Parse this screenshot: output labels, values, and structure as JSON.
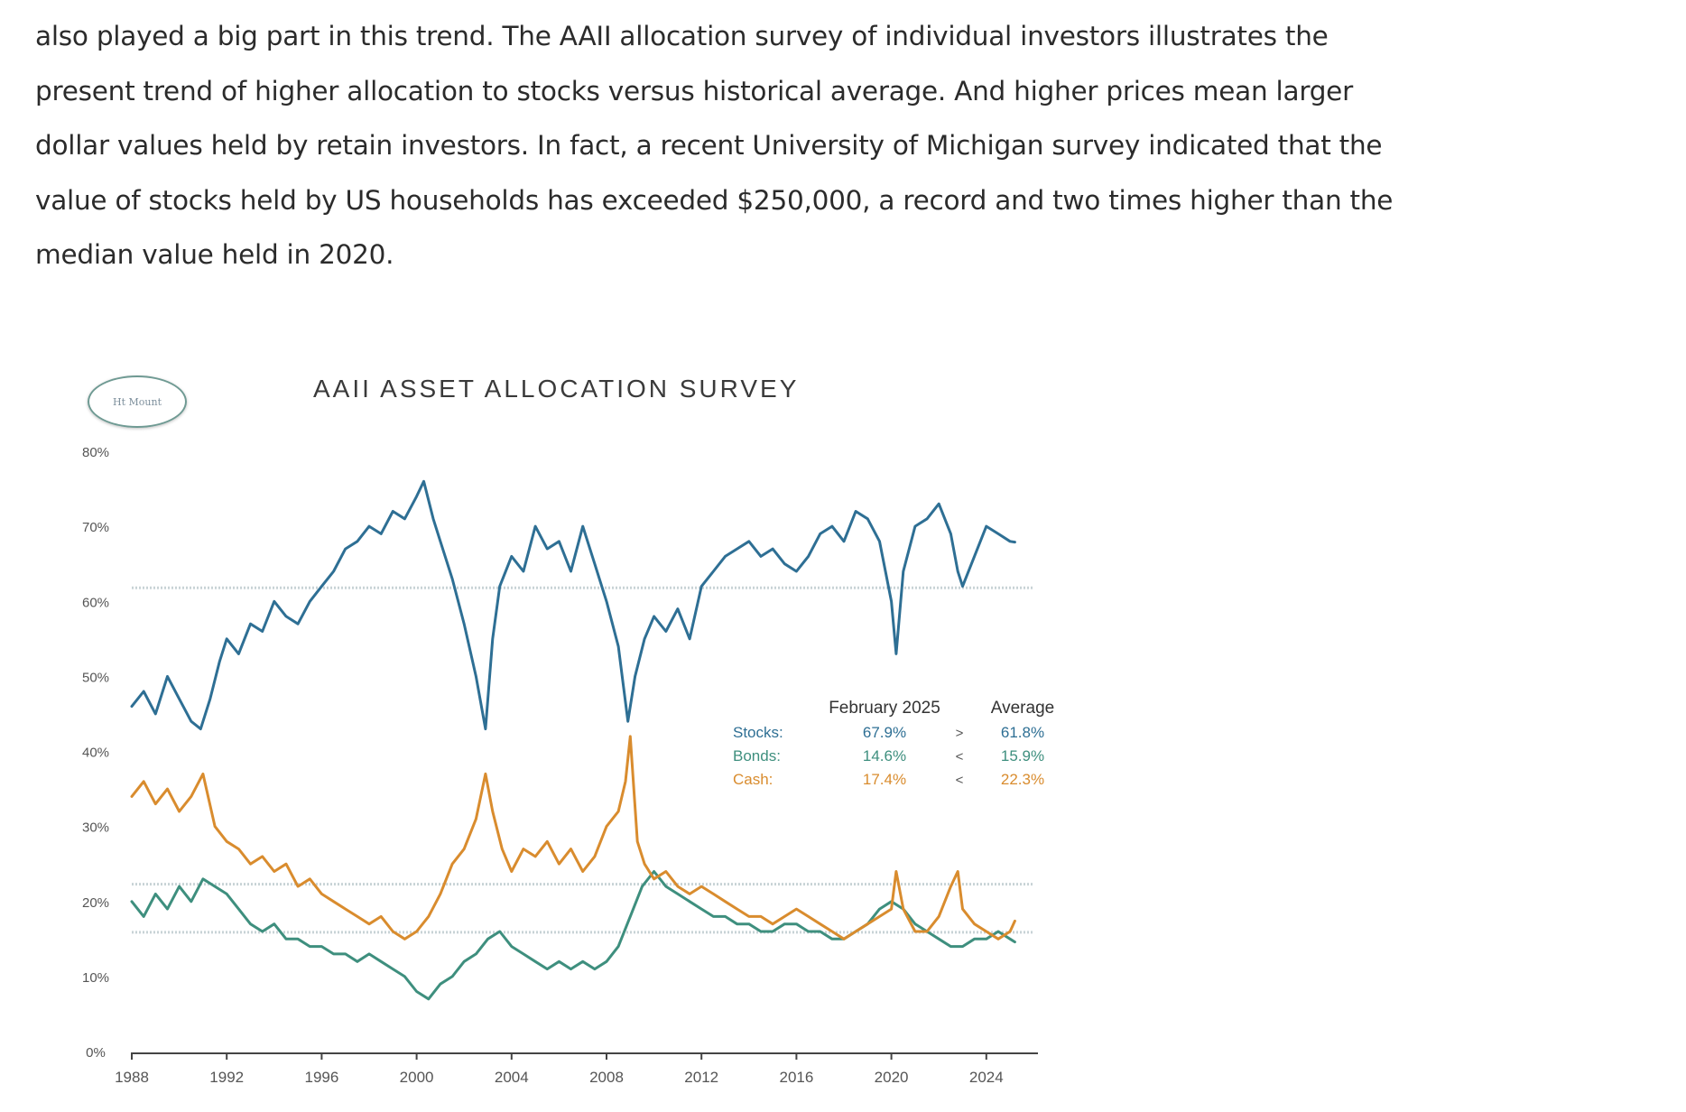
{
  "article": {
    "lines": [
      "also played a big part in this trend.  The AAII allocation survey of individual investors illustrates the",
      "present trend of higher allocation to stocks versus historical average.  And higher prices mean larger",
      "dollar values held by retain investors. In fact, a recent University of Michigan survey indicated that the",
      "value of stocks held by US households has exceeded $250,000, a record and two times higher than the",
      "median value held in 2020."
    ]
  },
  "logo": {
    "text": "Ht Mount"
  },
  "colors": {
    "stocks": "#2e6f94",
    "bonds": "#3e8f7e",
    "cash": "#d98c2e",
    "axis": "#444444",
    "text": "#555555"
  },
  "chart_data": {
    "type": "line",
    "title": "AAII ASSET ALLOCATION SURVEY",
    "xlabel": "",
    "ylabel": "",
    "xlim": [
      1988,
      2026
    ],
    "ylim": [
      0,
      80
    ],
    "x_ticks": [
      "1988",
      "1992",
      "1996",
      "2000",
      "2004",
      "2008",
      "2012",
      "2016",
      "2020",
      "2024"
    ],
    "y_ticks": [
      "0%",
      "10%",
      "20%",
      "30%",
      "40%",
      "50%",
      "60%",
      "70%",
      "80%"
    ],
    "averages": {
      "stocks": 61.8,
      "bonds": 15.9,
      "cash": 22.3
    },
    "legend_table": {
      "col_feb": "February 2025",
      "col_avg": "Average",
      "rows": [
        {
          "label": "Stocks:",
          "feb": "67.9%",
          "cmp": ">",
          "avg": "61.8%"
        },
        {
          "label": "Bonds:",
          "feb": "14.6%",
          "cmp": "<",
          "avg": "15.9%"
        },
        {
          "label": "Cash:",
          "feb": "17.4%",
          "cmp": "<",
          "avg": "22.3%"
        }
      ]
    },
    "series": [
      {
        "name": "Stocks",
        "color": "#2e6f94",
        "x": [
          1988.0,
          1988.5,
          1989.0,
          1989.5,
          1990.0,
          1990.5,
          1990.9,
          1991.3,
          1991.7,
          1992.0,
          1992.5,
          1993.0,
          1993.5,
          1994.0,
          1994.5,
          1995.0,
          1995.5,
          1996.0,
          1996.5,
          1997.0,
          1997.5,
          1998.0,
          1998.5,
          1999.0,
          1999.5,
          2000.0,
          2000.3,
          2000.7,
          2001.0,
          2001.5,
          2002.0,
          2002.5,
          2002.9,
          2003.2,
          2003.5,
          2004.0,
          2004.5,
          2005.0,
          2005.5,
          2006.0,
          2006.5,
          2007.0,
          2007.5,
          2008.0,
          2008.5,
          2008.9,
          2009.2,
          2009.6,
          2010.0,
          2010.5,
          2011.0,
          2011.5,
          2012.0,
          2012.5,
          2013.0,
          2013.5,
          2014.0,
          2014.5,
          2015.0,
          2015.5,
          2016.0,
          2016.5,
          2017.0,
          2017.5,
          2018.0,
          2018.5,
          2019.0,
          2019.5,
          2020.0,
          2020.2,
          2020.5,
          2021.0,
          2021.5,
          2022.0,
          2022.5,
          2022.8,
          2023.0,
          2023.5,
          2024.0,
          2024.5,
          2025.0,
          2025.2
        ],
        "values": [
          46,
          48,
          45,
          50,
          47,
          44,
          43,
          47,
          52,
          55,
          53,
          57,
          56,
          60,
          58,
          57,
          60,
          62,
          64,
          67,
          68,
          70,
          69,
          72,
          71,
          74,
          76,
          71,
          68,
          63,
          57,
          50,
          43,
          55,
          62,
          66,
          64,
          70,
          67,
          68,
          64,
          70,
          65,
          60,
          54,
          44,
          50,
          55,
          58,
          56,
          59,
          55,
          62,
          64,
          66,
          67,
          68,
          66,
          67,
          65,
          64,
          66,
          69,
          70,
          68,
          72,
          71,
          68,
          60,
          53,
          64,
          70,
          71,
          73,
          69,
          64,
          62,
          66,
          70,
          69,
          68,
          67.9
        ]
      },
      {
        "name": "Bonds",
        "color": "#3e8f7e",
        "x": [
          1988.0,
          1988.5,
          1989.0,
          1989.5,
          1990.0,
          1990.5,
          1991.0,
          1991.5,
          1992.0,
          1992.5,
          1993.0,
          1993.5,
          1994.0,
          1994.5,
          1995.0,
          1995.5,
          1996.0,
          1996.5,
          1997.0,
          1997.5,
          1998.0,
          1998.5,
          1999.0,
          1999.5,
          2000.0,
          2000.5,
          2001.0,
          2001.5,
          2002.0,
          2002.5,
          2003.0,
          2003.5,
          2004.0,
          2004.5,
          2005.0,
          2005.5,
          2006.0,
          2006.5,
          2007.0,
          2007.5,
          2008.0,
          2008.5,
          2009.0,
          2009.5,
          2010.0,
          2010.5,
          2011.0,
          2011.5,
          2012.0,
          2012.5,
          2013.0,
          2013.5,
          2014.0,
          2014.5,
          2015.0,
          2015.5,
          2016.0,
          2016.5,
          2017.0,
          2017.5,
          2018.0,
          2018.5,
          2019.0,
          2019.5,
          2020.0,
          2020.5,
          2021.0,
          2021.5,
          2022.0,
          2022.5,
          2023.0,
          2023.5,
          2024.0,
          2024.5,
          2025.0,
          2025.2
        ],
        "values": [
          20,
          18,
          21,
          19,
          22,
          20,
          23,
          22,
          21,
          19,
          17,
          16,
          17,
          15,
          15,
          14,
          14,
          13,
          13,
          12,
          13,
          12,
          11,
          10,
          8,
          7,
          9,
          10,
          12,
          13,
          15,
          16,
          14,
          13,
          12,
          11,
          12,
          11,
          12,
          11,
          12,
          14,
          18,
          22,
          24,
          22,
          21,
          20,
          19,
          18,
          18,
          17,
          17,
          16,
          16,
          17,
          17,
          16,
          16,
          15,
          15,
          16,
          17,
          19,
          20,
          19,
          17,
          16,
          15,
          14,
          14,
          15,
          15,
          16,
          15,
          14.6
        ]
      },
      {
        "name": "Cash",
        "color": "#d98c2e",
        "x": [
          1988.0,
          1988.5,
          1989.0,
          1989.5,
          1990.0,
          1990.5,
          1991.0,
          1991.5,
          1992.0,
          1992.5,
          1993.0,
          1993.5,
          1994.0,
          1994.5,
          1995.0,
          1995.5,
          1996.0,
          1996.5,
          1997.0,
          1997.5,
          1998.0,
          1998.5,
          1999.0,
          1999.5,
          2000.0,
          2000.5,
          2001.0,
          2001.5,
          2002.0,
          2002.5,
          2002.9,
          2003.2,
          2003.6,
          2004.0,
          2004.5,
          2005.0,
          2005.5,
          2006.0,
          2006.5,
          2007.0,
          2007.5,
          2008.0,
          2008.5,
          2008.8,
          2009.0,
          2009.3,
          2009.6,
          2010.0,
          2010.5,
          2011.0,
          2011.5,
          2012.0,
          2012.5,
          2013.0,
          2013.5,
          2014.0,
          2014.5,
          2015.0,
          2015.5,
          2016.0,
          2016.5,
          2017.0,
          2017.5,
          2018.0,
          2018.5,
          2019.0,
          2019.5,
          2020.0,
          2020.2,
          2020.5,
          2021.0,
          2021.5,
          2022.0,
          2022.5,
          2022.8,
          2023.0,
          2023.5,
          2024.0,
          2024.5,
          2025.0,
          2025.2
        ],
        "values": [
          34,
          36,
          33,
          35,
          32,
          34,
          37,
          30,
          28,
          27,
          25,
          26,
          24,
          25,
          22,
          23,
          21,
          20,
          19,
          18,
          17,
          18,
          16,
          15,
          16,
          18,
          21,
          25,
          27,
          31,
          37,
          32,
          27,
          24,
          27,
          26,
          28,
          25,
          27,
          24,
          26,
          30,
          32,
          36,
          42,
          28,
          25,
          23,
          24,
          22,
          21,
          22,
          21,
          20,
          19,
          18,
          18,
          17,
          18,
          19,
          18,
          17,
          16,
          15,
          16,
          17,
          18,
          19,
          24,
          19,
          16,
          16,
          18,
          22,
          24,
          19,
          17,
          16,
          15,
          16,
          17.4
        ]
      }
    ]
  }
}
